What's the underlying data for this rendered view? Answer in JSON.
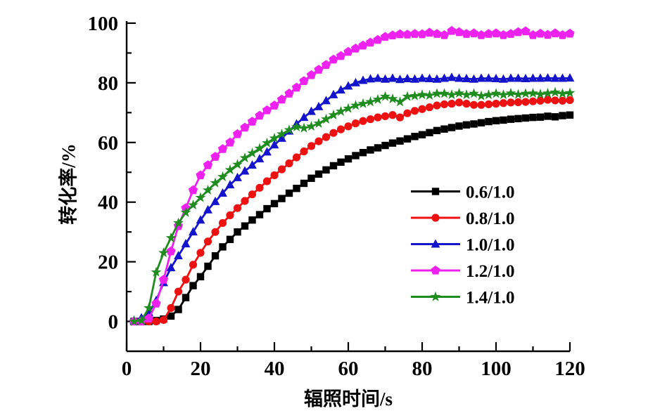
{
  "chart_data": {
    "type": "line",
    "title": "",
    "xlabel": "辐照时间/s",
    "ylabel": "转化率/%",
    "xlim": [
      0,
      120
    ],
    "ylim": [
      -10,
      100.7
    ],
    "x_major_ticks": [
      0,
      20,
      40,
      60,
      80,
      100,
      120
    ],
    "x_minor_ticks": [
      10,
      30,
      50,
      70,
      90,
      110
    ],
    "y_major_ticks": [
      0,
      20,
      40,
      60,
      80,
      100
    ],
    "y_minor_ticks": [
      10,
      30,
      50,
      70,
      90
    ],
    "grid": false,
    "legend_position": "inside-right-middle",
    "x": [
      2,
      4,
      6,
      8,
      10,
      12,
      14,
      16,
      18,
      20,
      22,
      24,
      26,
      28,
      30,
      32,
      34,
      36,
      38,
      40,
      42,
      44,
      46,
      48,
      50,
      52,
      54,
      56,
      58,
      60,
      62,
      64,
      66,
      68,
      70,
      72,
      74,
      76,
      78,
      80,
      82,
      84,
      86,
      88,
      90,
      92,
      94,
      96,
      98,
      100,
      102,
      104,
      106,
      108,
      110,
      112,
      114,
      116,
      118,
      120
    ],
    "series": [
      {
        "name": "0.6/1.0",
        "color": "#000000",
        "marker": "square",
        "values": [
          0,
          0,
          0,
          0.3,
          0.8,
          1.8,
          4,
          8,
          12,
          15,
          18.5,
          22,
          25,
          27.5,
          30,
          32,
          34,
          35.8,
          37.8,
          39.5,
          41.2,
          43,
          44.6,
          46.3,
          48,
          49.4,
          50.8,
          52.2,
          53.4,
          54.5,
          55.6,
          56.6,
          57.5,
          58.2,
          59,
          59.8,
          60.5,
          61.2,
          62,
          62.6,
          63.3,
          64,
          64.5,
          65,
          65.5,
          65.9,
          66.2,
          66.6,
          67,
          67.3,
          67.5,
          67.8,
          68,
          68.2,
          68.4,
          68.5,
          68.8,
          68.6,
          69,
          69.2
        ]
      },
      {
        "name": "0.8/1.0",
        "color": "#ee1111",
        "marker": "circle",
        "values": [
          0,
          0,
          0,
          0,
          0.5,
          4.5,
          10,
          14,
          19,
          23,
          26.8,
          30,
          33,
          35.6,
          38,
          40.4,
          42.6,
          44.8,
          47,
          49,
          51,
          53,
          55,
          57,
          58.8,
          60.4,
          61.8,
          63.2,
          64.4,
          65.4,
          66.4,
          67.2,
          67.8,
          68.4,
          68.8,
          69.2,
          68.4,
          69.8,
          70.6,
          71.2,
          71.8,
          72.4,
          72.8,
          73,
          73.4,
          73,
          72.6,
          72.6,
          72.8,
          73,
          73.2,
          73.4,
          73.5,
          73.6,
          73.8,
          74,
          74.3,
          74.1,
          74,
          74.2
        ]
      },
      {
        "name": "1.0/1.0",
        "color": "#1414cc",
        "marker": "triangle-up",
        "values": [
          0.3,
          1.2,
          3,
          7,
          13,
          18,
          22,
          26,
          30,
          34,
          37.4,
          40.2,
          43,
          45.8,
          48.2,
          50.4,
          52.4,
          54.5,
          56.8,
          59.2,
          61.4,
          63.8,
          66.2,
          68.4,
          70.4,
          72,
          74,
          76,
          77.6,
          78.9,
          80,
          80.8,
          81.3,
          81.5,
          81.2,
          81.5,
          81.1,
          81.4,
          81.2,
          81.5,
          81.4,
          81.2,
          81.5,
          81.8,
          81.5,
          81.4,
          81.2,
          81.5,
          81.5,
          81.4,
          81.2,
          81.5,
          81.5,
          81.4,
          81.5,
          81.5,
          81.6,
          81.5,
          81.5,
          81.6
        ]
      },
      {
        "name": "1.2/1.0",
        "color": "#ee22ee",
        "marker": "pentagon",
        "values": [
          0,
          0,
          1,
          6,
          14,
          23.5,
          32,
          38,
          44,
          49,
          52.4,
          55.2,
          57.8,
          60,
          62.8,
          65,
          67,
          69,
          70.8,
          72.4,
          74.4,
          76.4,
          78.4,
          80.6,
          82.6,
          84.4,
          86,
          87.8,
          89,
          90.4,
          91.5,
          92.5,
          93.5,
          94.4,
          95.4,
          95.9,
          96.3,
          96.2,
          96.4,
          96.3,
          96.8,
          96.4,
          96,
          97.4,
          97,
          96.4,
          96.6,
          96,
          96.4,
          96.6,
          96,
          96.4,
          97,
          97.3,
          96,
          96.5,
          96.1,
          96.6,
          96,
          96.5
        ]
      },
      {
        "name": "1.4/1.0",
        "color": "#1e8c1e",
        "marker": "star",
        "values": [
          0,
          0.3,
          4.5,
          16.5,
          23,
          28,
          33,
          36.5,
          39,
          41.5,
          44,
          46.4,
          48.5,
          50.8,
          52.6,
          54.8,
          56.4,
          58,
          59.8,
          61.4,
          62.8,
          64.2,
          65.2,
          64.8,
          65.4,
          66.4,
          67.8,
          69.2,
          70.4,
          71.4,
          72.4,
          73,
          73.6,
          74.4,
          75.4,
          74.6,
          73.6,
          75.4,
          75.6,
          76,
          75.8,
          76.4,
          76.4,
          76,
          76.5,
          76,
          76.4,
          75.6,
          76,
          76.4,
          76,
          76.5,
          76.1,
          76.4,
          76.5,
          76.2,
          76.5,
          76.8,
          76.4,
          76.6
        ]
      }
    ]
  }
}
